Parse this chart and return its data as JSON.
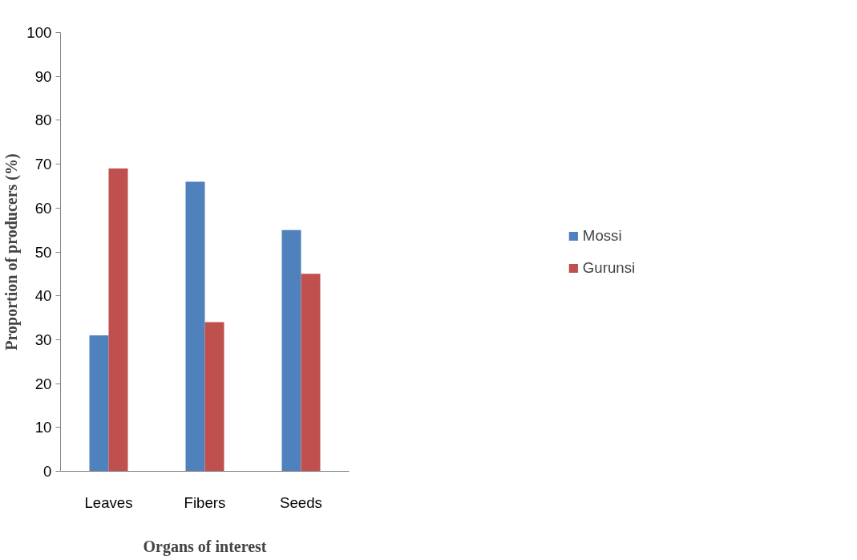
{
  "chart_data": {
    "type": "bar",
    "xlabel": "Organs of interest",
    "ylabel": "Proportion of producers (%)",
    "categories": [
      "Leaves",
      "Fibers",
      "Seeds"
    ],
    "series": [
      {
        "name": "Mossi",
        "color": "#4f81bd",
        "values": [
          31,
          66,
          55
        ]
      },
      {
        "name": "Gurunsi",
        "color": "#c0504d",
        "values": [
          69,
          34,
          45
        ]
      }
    ],
    "ylim": [
      0,
      100
    ],
    "yticks": [
      0,
      10,
      20,
      30,
      40,
      50,
      60,
      70,
      80,
      90,
      100
    ],
    "grid": false,
    "legend": "right"
  }
}
